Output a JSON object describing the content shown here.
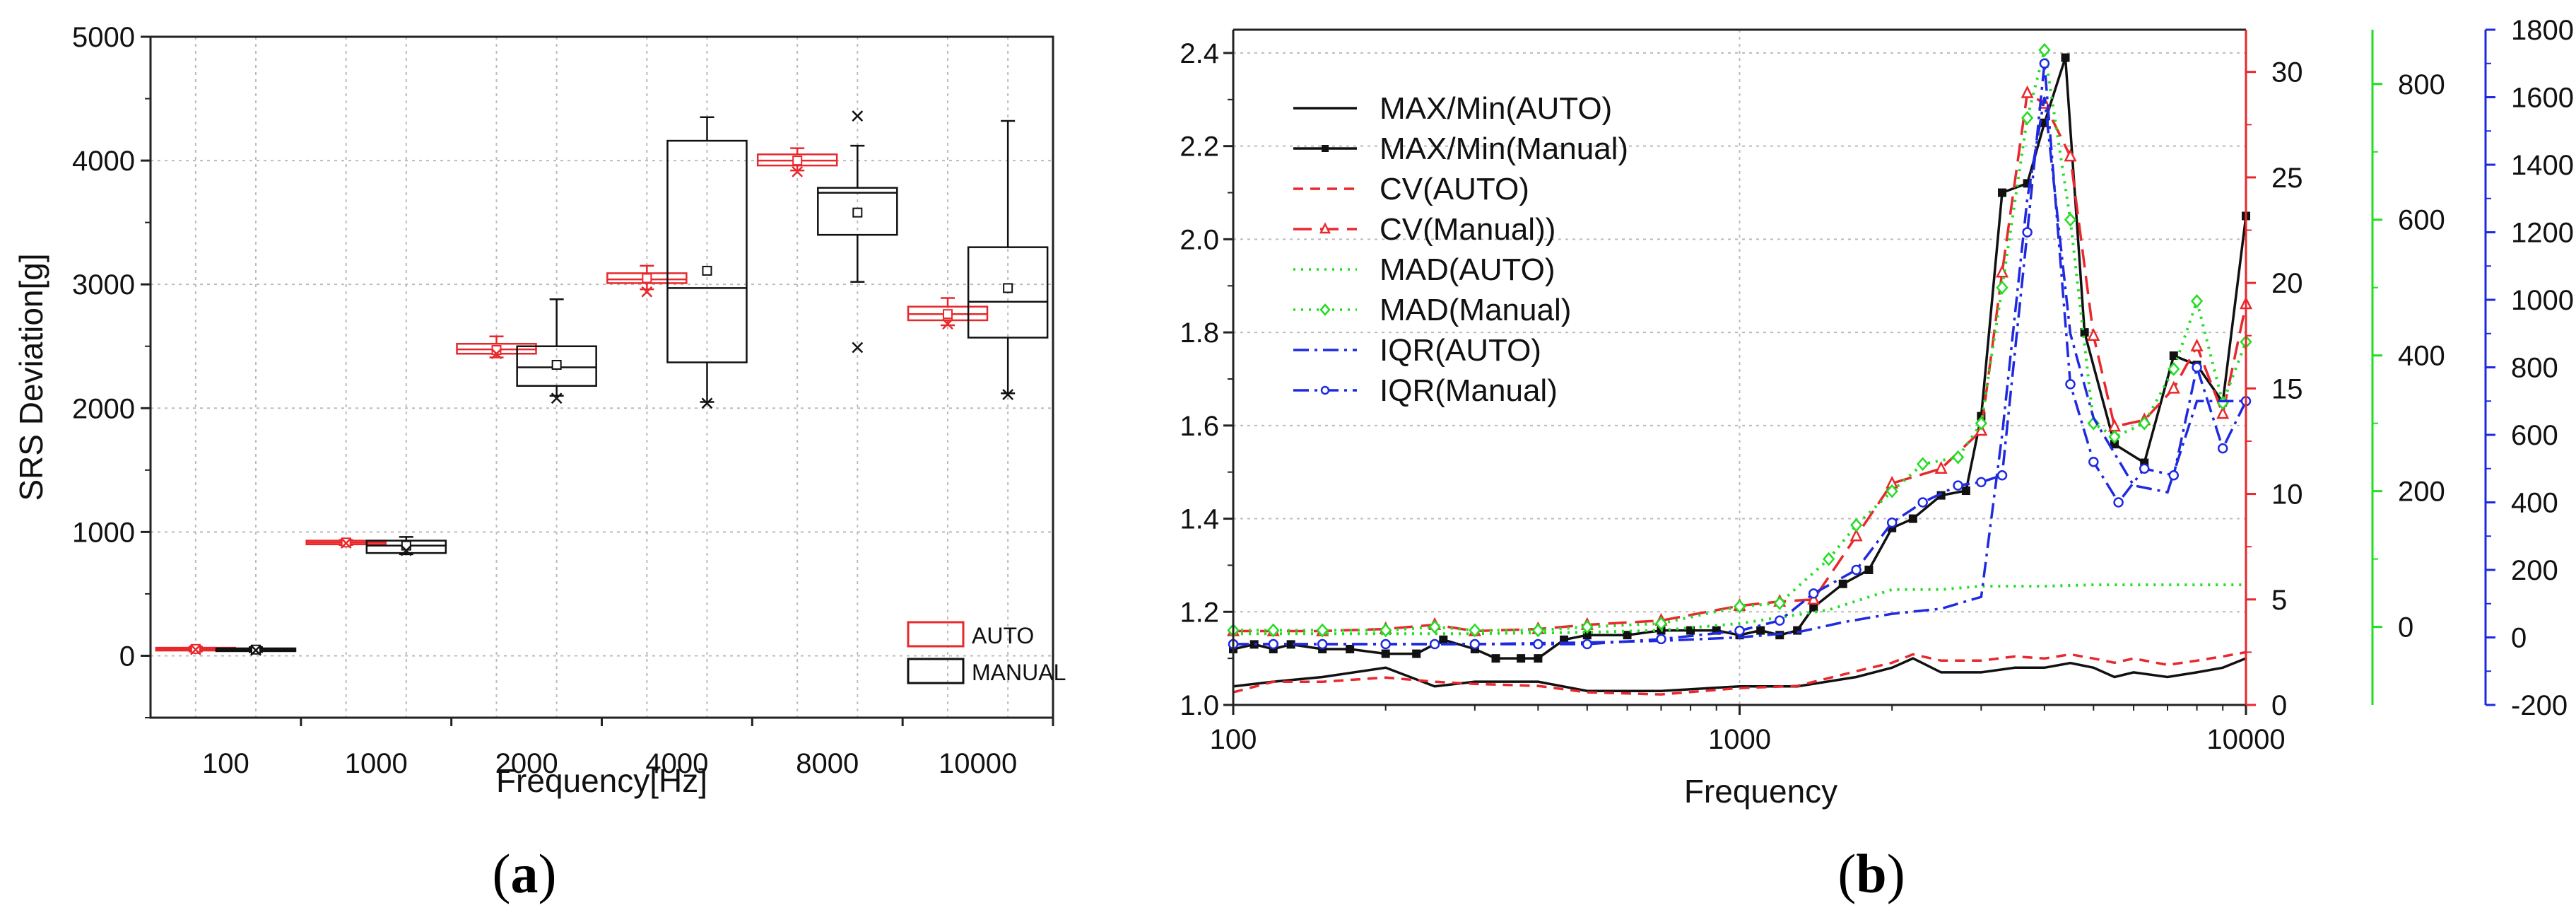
{
  "captions": {
    "a": {
      "open": "(",
      "letter": "a",
      "close": ")"
    },
    "b": {
      "open": "(",
      "letter": "b",
      "close": ")"
    }
  },
  "chart_data": [
    {
      "type": "box",
      "panel": "a",
      "xlabel": "Frequency[Hz]",
      "ylabel": "SRS Deviation[g]",
      "ylim": [
        -500,
        5000
      ],
      "yticks": [
        0,
        1000,
        2000,
        3000,
        4000,
        5000
      ],
      "categories": [
        "100",
        "1000",
        "2000",
        "4000",
        "8000",
        "10000"
      ],
      "grid": true,
      "legend": {
        "position": "bottom-right",
        "entries": [
          "AUTO",
          "MANUAL"
        ]
      },
      "colors": {
        "AUTO": "#e8282c",
        "MANUAL": "#111111"
      },
      "series": [
        {
          "name": "AUTO",
          "boxes": [
            {
              "category": "100",
              "q1": 45,
              "median": 55,
              "q3": 65,
              "whisker_low": 35,
              "whisker_high": 75,
              "mean": 55,
              "outliers": [
                50
              ]
            },
            {
              "category": "1000",
              "q1": 900,
              "median": 915,
              "q3": 930,
              "whisker_low": 895,
              "whisker_high": 935,
              "mean": 915,
              "outliers": [
                910
              ]
            },
            {
              "category": "2000",
              "q1": 2440,
              "median": 2475,
              "q3": 2520,
              "whisker_low": 2410,
              "whisker_high": 2580,
              "mean": 2470,
              "outliers": [
                2440
              ]
            },
            {
              "category": "4000",
              "q1": 3010,
              "median": 3040,
              "q3": 3090,
              "whisker_low": 2960,
              "whisker_high": 3150,
              "mean": 3050,
              "outliers": [
                2940
              ]
            },
            {
              "category": "8000",
              "q1": 3960,
              "median": 4000,
              "q3": 4050,
              "whisker_low": 3920,
              "whisker_high": 4100,
              "mean": 4000,
              "outliers": [
                3910
              ]
            },
            {
              "category": "10000",
              "q1": 2710,
              "median": 2760,
              "q3": 2820,
              "whisker_low": 2670,
              "whisker_high": 2890,
              "mean": 2760,
              "outliers": [
                2680
              ]
            }
          ]
        },
        {
          "name": "MANUAL",
          "boxes": [
            {
              "category": "100",
              "q1": 40,
              "median": 50,
              "q3": 60,
              "whisker_low": 30,
              "whisker_high": 70,
              "mean": 50,
              "outliers": [
                45
              ]
            },
            {
              "category": "1000",
              "q1": 830,
              "median": 890,
              "q3": 930,
              "whisker_low": 820,
              "whisker_high": 960,
              "mean": 890,
              "outliers": [
                850
              ]
            },
            {
              "category": "2000",
              "q1": 2180,
              "median": 2330,
              "q3": 2500,
              "whisker_low": 2100,
              "whisker_high": 2880,
              "mean": 2350,
              "outliers": [
                2080
              ]
            },
            {
              "category": "4000",
              "q1": 2370,
              "median": 2970,
              "q3": 4160,
              "whisker_low": 2050,
              "whisker_high": 4350,
              "mean": 3110,
              "outliers": [
                2040
              ]
            },
            {
              "category": "8000",
              "q1": 3400,
              "median": 3740,
              "q3": 3780,
              "whisker_low": 3020,
              "whisker_high": 4120,
              "mean": 3580,
              "outliers": [
                4360,
                2490
              ]
            },
            {
              "category": "10000",
              "q1": 2570,
              "median": 2860,
              "q3": 3300,
              "whisker_low": 2120,
              "whisker_high": 4320,
              "mean": 2970,
              "outliers": [
                2110
              ]
            }
          ]
        }
      ]
    },
    {
      "type": "line",
      "panel": "b",
      "xlabel": "Frequency",
      "xscale": "log",
      "xlim": [
        100,
        10000
      ],
      "xticks": [
        100,
        1000,
        10000
      ],
      "ylim": [
        1.0,
        2.45
      ],
      "yticks": [
        1.0,
        1.2,
        1.4,
        1.6,
        1.8,
        2.0,
        2.2,
        2.4
      ],
      "grid": true,
      "legend": {
        "position": "top-left"
      },
      "right_axes": [
        {
          "id": "cv",
          "color": "#e8282c",
          "ylim": [
            0,
            32
          ],
          "ticks": [
            0,
            5,
            10,
            15,
            20,
            25,
            30
          ]
        },
        {
          "id": "mad",
          "color": "#22dd22",
          "ylim": [
            -115,
            880
          ],
          "ticks": [
            0,
            200,
            400,
            600,
            800
          ]
        },
        {
          "id": "iqr",
          "color": "#1f2ae0",
          "ylim": [
            -200,
            1800
          ],
          "ticks": [
            -200,
            0,
            200,
            400,
            600,
            800,
            1000,
            1200,
            1400,
            1600,
            1800
          ]
        }
      ],
      "series": [
        {
          "name": "MAX/Min(AUTO)",
          "axis": "left",
          "color": "#111111",
          "style": "solid",
          "marker": "none",
          "x": [
            100,
            120,
            150,
            200,
            250,
            300,
            400,
            500,
            700,
            1000,
            1300,
            1700,
            2000,
            2200,
            2500,
            3000,
            3500,
            4000,
            4500,
            5000,
            5500,
            6000,
            7000,
            8000,
            9000,
            10000
          ],
          "y": [
            1.04,
            1.05,
            1.06,
            1.08,
            1.04,
            1.05,
            1.05,
            1.03,
            1.03,
            1.04,
            1.04,
            1.06,
            1.08,
            1.1,
            1.07,
            1.07,
            1.08,
            1.08,
            1.09,
            1.08,
            1.06,
            1.07,
            1.06,
            1.07,
            1.08,
            1.1
          ]
        },
        {
          "name": "MAX/Min(Manual)",
          "axis": "left",
          "color": "#111111",
          "style": "solid",
          "marker": "square",
          "x": [
            100,
            110,
            120,
            130,
            150,
            170,
            200,
            230,
            260,
            300,
            330,
            370,
            400,
            450,
            500,
            600,
            700,
            800,
            900,
            1000,
            1100,
            1200,
            1300,
            1400,
            1600,
            1800,
            2000,
            2200,
            2500,
            2800,
            3000,
            3300,
            3700,
            4000,
            4400,
            4800,
            5500,
            6300,
            7200,
            8000,
            9000,
            10000
          ],
          "y": [
            1.12,
            1.13,
            1.12,
            1.13,
            1.12,
            1.12,
            1.11,
            1.11,
            1.14,
            1.12,
            1.1,
            1.1,
            1.1,
            1.14,
            1.15,
            1.15,
            1.16,
            1.16,
            1.16,
            1.15,
            1.16,
            1.15,
            1.16,
            1.21,
            1.26,
            1.29,
            1.38,
            1.4,
            1.45,
            1.46,
            1.62,
            2.1,
            2.12,
            2.25,
            2.39,
            1.8,
            1.56,
            1.52,
            1.75,
            1.73,
            1.65,
            2.05
          ]
        },
        {
          "name": "CV(AUTO)",
          "axis": "cv",
          "color": "#e8282c",
          "style": "dashed",
          "marker": "none",
          "x": [
            100,
            120,
            150,
            200,
            250,
            300,
            400,
            500,
            700,
            1000,
            1300,
            1700,
            2000,
            2200,
            2500,
            3000,
            3500,
            4000,
            4500,
            5000,
            5500,
            6000,
            7000,
            8000,
            9000,
            10000
          ],
          "y": [
            0.6,
            1.1,
            1.1,
            1.3,
            1.1,
            1.0,
            0.9,
            0.6,
            0.5,
            0.8,
            0.9,
            1.6,
            2.0,
            2.4,
            2.1,
            2.1,
            2.3,
            2.2,
            2.4,
            2.2,
            2.0,
            2.2,
            1.9,
            2.1,
            2.3,
            2.5
          ]
        },
        {
          "name": "CV(Manual))",
          "axis": "cv",
          "color": "#e8282c",
          "style": "longdash",
          "marker": "triangle",
          "x": [
            100,
            120,
            150,
            200,
            250,
            300,
            400,
            500,
            700,
            1000,
            1200,
            1400,
            1700,
            2000,
            2500,
            3000,
            3300,
            3700,
            4000,
            4500,
            5000,
            5500,
            6300,
            7200,
            8000,
            9000,
            10000
          ],
          "y": [
            3.5,
            3.5,
            3.5,
            3.6,
            3.8,
            3.5,
            3.6,
            3.8,
            4.0,
            4.7,
            4.9,
            5.0,
            8.0,
            10.5,
            11.2,
            13.0,
            20.5,
            29.0,
            28.5,
            26.0,
            17.5,
            13.2,
            13.5,
            15.0,
            17.0,
            13.8,
            19.0
          ]
        },
        {
          "name": "MAD(AUTO)",
          "axis": "mad",
          "color": "#22dd22",
          "style": "dotted",
          "marker": "none",
          "x": [
            100,
            150,
            200,
            300,
            500,
            700,
            1000,
            1500,
            2000,
            2500,
            3000,
            4000,
            5000,
            6000,
            7000,
            8000,
            10000
          ],
          "y": [
            -10,
            -10,
            -10,
            -10,
            -8,
            -5,
            5,
            25,
            55,
            55,
            60,
            60,
            62,
            62,
            62,
            62,
            62
          ]
        },
        {
          "name": "MAD(Manual)",
          "axis": "mad",
          "color": "#22dd22",
          "style": "dotted",
          "marker": "diamond",
          "x": [
            100,
            120,
            150,
            200,
            250,
            300,
            400,
            500,
            700,
            1000,
            1200,
            1500,
            1700,
            2000,
            2300,
            2700,
            3000,
            3300,
            3700,
            4000,
            4500,
            5000,
            5500,
            6300,
            7200,
            8000,
            9000,
            10000
          ],
          "y": [
            -5,
            -5,
            -5,
            -5,
            0,
            -5,
            -5,
            0,
            5,
            30,
            35,
            100,
            150,
            200,
            240,
            250,
            300,
            500,
            750,
            850,
            600,
            300,
            280,
            300,
            380,
            480,
            330,
            420
          ]
        },
        {
          "name": "IQR(AUTO)",
          "axis": "iqr",
          "color": "#1f2ae0",
          "style": "dashdot",
          "marker": "none",
          "x": [
            100,
            150,
            200,
            300,
            500,
            700,
            1000,
            1300,
            1600,
            2000,
            2500,
            3000,
            3300,
            3700,
            4000,
            4500,
            5000,
            6000,
            7000,
            8000,
            10000
          ],
          "y": [
            -20,
            -20,
            -20,
            -20,
            -15,
            -10,
            0,
            15,
            45,
            70,
            85,
            120,
            600,
            1300,
            1600,
            900,
            650,
            450,
            430,
            700,
            700
          ]
        },
        {
          "name": "IQR(Manual)",
          "axis": "iqr",
          "color": "#1f2ae0",
          "style": "dashdot",
          "marker": "circle",
          "x": [
            100,
            120,
            150,
            200,
            250,
            300,
            400,
            500,
            700,
            1000,
            1200,
            1400,
            1700,
            2000,
            2300,
            2700,
            3000,
            3300,
            3700,
            4000,
            4500,
            5000,
            5600,
            6300,
            7200,
            8000,
            9000,
            10000
          ],
          "y": [
            -20,
            -20,
            -20,
            -20,
            -20,
            -20,
            -20,
            -20,
            -5,
            20,
            50,
            130,
            200,
            340,
            400,
            450,
            460,
            480,
            1200,
            1700,
            750,
            520,
            400,
            500,
            480,
            800,
            560,
            700
          ]
        }
      ]
    }
  ]
}
